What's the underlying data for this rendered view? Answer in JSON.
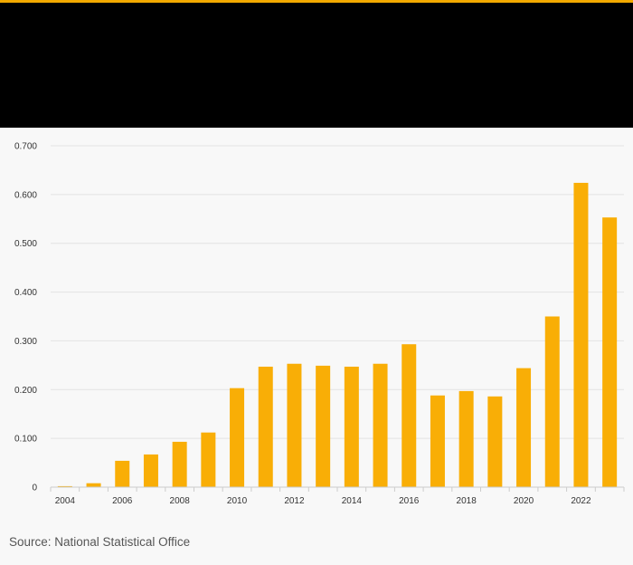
{
  "chart_data": {
    "type": "bar",
    "title": "",
    "xlabel": "",
    "ylabel": "",
    "categories": [
      "2004",
      "2005",
      "2006",
      "2007",
      "2008",
      "2009",
      "2010",
      "2011",
      "2012",
      "2013",
      "2014",
      "2015",
      "2016",
      "2017",
      "2018",
      "2019",
      "2020",
      "2021",
      "2022",
      "2023"
    ],
    "x_tick_labels": [
      "2004",
      "2006",
      "2008",
      "2010",
      "2012",
      "2014",
      "2016",
      "2018",
      "2020",
      "2022"
    ],
    "values": [
      0.002,
      0.008,
      0.054,
      0.067,
      0.093,
      0.112,
      0.203,
      0.247,
      0.253,
      0.249,
      0.247,
      0.253,
      0.293,
      0.188,
      0.197,
      0.186,
      0.244,
      0.35,
      0.624,
      0.553
    ],
    "ylim": [
      0,
      0.7
    ],
    "y_ticks": [
      0,
      0.1,
      0.2,
      0.3,
      0.4,
      0.5,
      0.6,
      0.7
    ],
    "y_tick_labels": [
      "0",
      "0.100",
      "0.200",
      "0.300",
      "0.400",
      "0.500",
      "0.600",
      "0.700"
    ],
    "grid": true,
    "bar_color": "#f9ae06"
  },
  "footer": {
    "source": "Source: National Statistical Office"
  },
  "colors": {
    "header_bg": "#000000",
    "accent": "#f2a900",
    "background": "#f8f8f8"
  }
}
